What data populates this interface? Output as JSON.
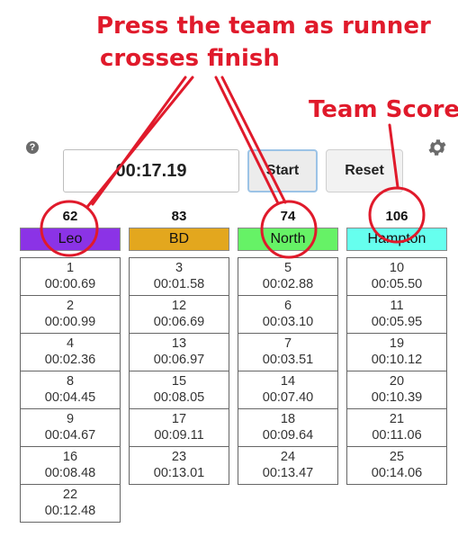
{
  "annotations": {
    "press_line1": "Press the team as runner",
    "press_line2": "crosses finish",
    "team_score": "Team Score"
  },
  "timer": {
    "display": "00:17.19"
  },
  "buttons": {
    "start": "Start",
    "reset": "Reset"
  },
  "icons": {
    "help": "question-circle-icon",
    "settings": "gear-icon"
  },
  "colors": {
    "annotation": "#e01a2b",
    "leo": "#8b33e6",
    "bd": "#e3a71e",
    "north": "#66f266",
    "hampton": "#66ffee"
  },
  "teams": [
    {
      "name": "Leo",
      "score": "62",
      "color": "#8b33e6",
      "finishes": [
        {
          "place": "1",
          "time": "00:00.69"
        },
        {
          "place": "2",
          "time": "00:00.99"
        },
        {
          "place": "4",
          "time": "00:02.36"
        },
        {
          "place": "8",
          "time": "00:04.45"
        },
        {
          "place": "9",
          "time": "00:04.67"
        },
        {
          "place": "16",
          "time": "00:08.48"
        },
        {
          "place": "22",
          "time": "00:12.48"
        }
      ]
    },
    {
      "name": "BD",
      "score": "83",
      "color": "#e3a71e",
      "finishes": [
        {
          "place": "3",
          "time": "00:01.58"
        },
        {
          "place": "12",
          "time": "00:06.69"
        },
        {
          "place": "13",
          "time": "00:06.97"
        },
        {
          "place": "15",
          "time": "00:08.05"
        },
        {
          "place": "17",
          "time": "00:09.11"
        },
        {
          "place": "23",
          "time": "00:13.01"
        }
      ]
    },
    {
      "name": "North",
      "score": "74",
      "color": "#66f266",
      "finishes": [
        {
          "place": "5",
          "time": "00:02.88"
        },
        {
          "place": "6",
          "time": "00:03.10"
        },
        {
          "place": "7",
          "time": "00:03.51"
        },
        {
          "place": "14",
          "time": "00:07.40"
        },
        {
          "place": "18",
          "time": "00:09.64"
        },
        {
          "place": "24",
          "time": "00:13.47"
        }
      ]
    },
    {
      "name": "Hampton",
      "score": "106",
      "color": "#66ffee",
      "finishes": [
        {
          "place": "10",
          "time": "00:05.50"
        },
        {
          "place": "11",
          "time": "00:05.95"
        },
        {
          "place": "19",
          "time": "00:10.12"
        },
        {
          "place": "20",
          "time": "00:10.39"
        },
        {
          "place": "21",
          "time": "00:11.06"
        },
        {
          "place": "25",
          "time": "00:14.06"
        }
      ]
    }
  ]
}
